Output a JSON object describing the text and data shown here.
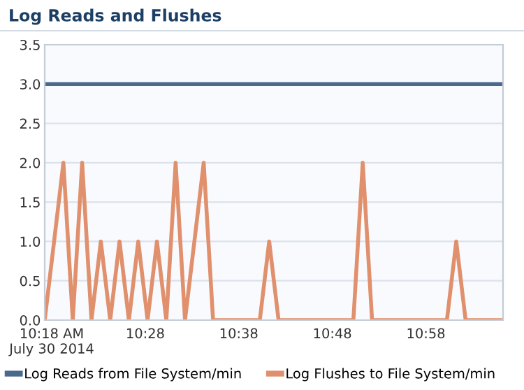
{
  "chart_data": {
    "type": "line",
    "title": "Log Reads and Flushes",
    "series": [
      {
        "name": "Log Reads from File System/min",
        "color": "#4b6a8b",
        "x": [
          10.2875,
          11.1042
        ],
        "values": [
          3.0,
          3.0
        ]
      },
      {
        "name": "Log Flushes to File System/min",
        "color": "#e0906c",
        "x": [
          10.2875,
          10.3042,
          10.3208,
          10.3375,
          10.3542,
          10.3708,
          10.3875,
          10.4042,
          10.4208,
          10.4375,
          10.4542,
          10.4708,
          10.4875,
          10.5042,
          10.5208,
          10.5375,
          10.5542,
          10.5708,
          10.5875,
          10.6708,
          10.6875,
          10.7042,
          10.8375,
          10.8542,
          10.8708,
          11.0042,
          11.0208,
          11.0375,
          11.1042
        ],
        "values": [
          0,
          1,
          2,
          0,
          2,
          0,
          1,
          0,
          1,
          0,
          1,
          0,
          1,
          0,
          2,
          0,
          1,
          2,
          0,
          0,
          1,
          0,
          0,
          2,
          0,
          0,
          1,
          0,
          0
        ]
      }
    ],
    "xlim": [
      10.2875,
      11.1042
    ],
    "xticks": [
      {
        "value": 10.3,
        "label": "10:18 AM\nJuly 30 2014"
      },
      {
        "value": 10.4667,
        "label": "10:28"
      },
      {
        "value": 10.6333,
        "label": "10:38"
      },
      {
        "value": 10.8,
        "label": "10:48"
      },
      {
        "value": 10.9667,
        "label": "10:58"
      }
    ],
    "ylim": [
      0,
      3.5
    ],
    "yticks": [
      {
        "value": 0,
        "label": "0.0"
      },
      {
        "value": 0.5,
        "label": "0.5"
      },
      {
        "value": 1,
        "label": "1.0"
      },
      {
        "value": 1.5,
        "label": "1.5"
      },
      {
        "value": 2,
        "label": "2.0"
      },
      {
        "value": 2.5,
        "label": "2.5"
      },
      {
        "value": 3,
        "label": "3.0"
      },
      {
        "value": 3.5,
        "label": "3.5"
      }
    ],
    "grid": "y",
    "legend": "bottom",
    "marker": "none",
    "line_style": "solid"
  }
}
